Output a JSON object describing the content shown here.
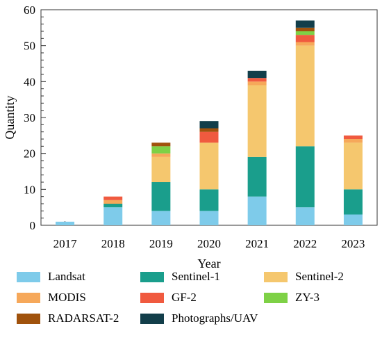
{
  "chart_data": {
    "type": "bar",
    "stacked": true,
    "xlabel": "Year",
    "ylabel": "Quantity",
    "ylim": [
      0,
      60
    ],
    "yticks": [
      0,
      10,
      20,
      30,
      40,
      50,
      60
    ],
    "grid": false,
    "legend_position": "bottom",
    "categories": [
      "2017",
      "2018",
      "2019",
      "2020",
      "2021",
      "2022",
      "2023"
    ],
    "series": [
      {
        "name": "Landsat",
        "color": "#7ecbea",
        "values": [
          1,
          5,
          4,
          4,
          8,
          5,
          3
        ]
      },
      {
        "name": "Sentinel-1",
        "color": "#1a9e8c",
        "values": [
          0,
          1,
          8,
          6,
          11,
          17,
          7
        ]
      },
      {
        "name": "Sentinel-2",
        "color": "#f5c76e",
        "values": [
          0,
          0,
          7,
          13,
          20,
          28,
          13
        ]
      },
      {
        "name": "MODIS",
        "color": "#f6a85a",
        "values": [
          0,
          1,
          1,
          0,
          1,
          1,
          1
        ]
      },
      {
        "name": "GF-2",
        "color": "#f05a3f",
        "values": [
          0,
          1,
          0,
          3,
          1,
          2,
          1
        ]
      },
      {
        "name": "ZY-3",
        "color": "#7ed146",
        "values": [
          0,
          0,
          2,
          0,
          0,
          1,
          0
        ]
      },
      {
        "name": "RADARSAT-2",
        "color": "#a0520c",
        "values": [
          0,
          0,
          1,
          1,
          0,
          1,
          0
        ]
      },
      {
        "name": "Photographs/UAV",
        "color": "#123e4a",
        "values": [
          0,
          0,
          0,
          2,
          2,
          2,
          0
        ]
      }
    ]
  }
}
